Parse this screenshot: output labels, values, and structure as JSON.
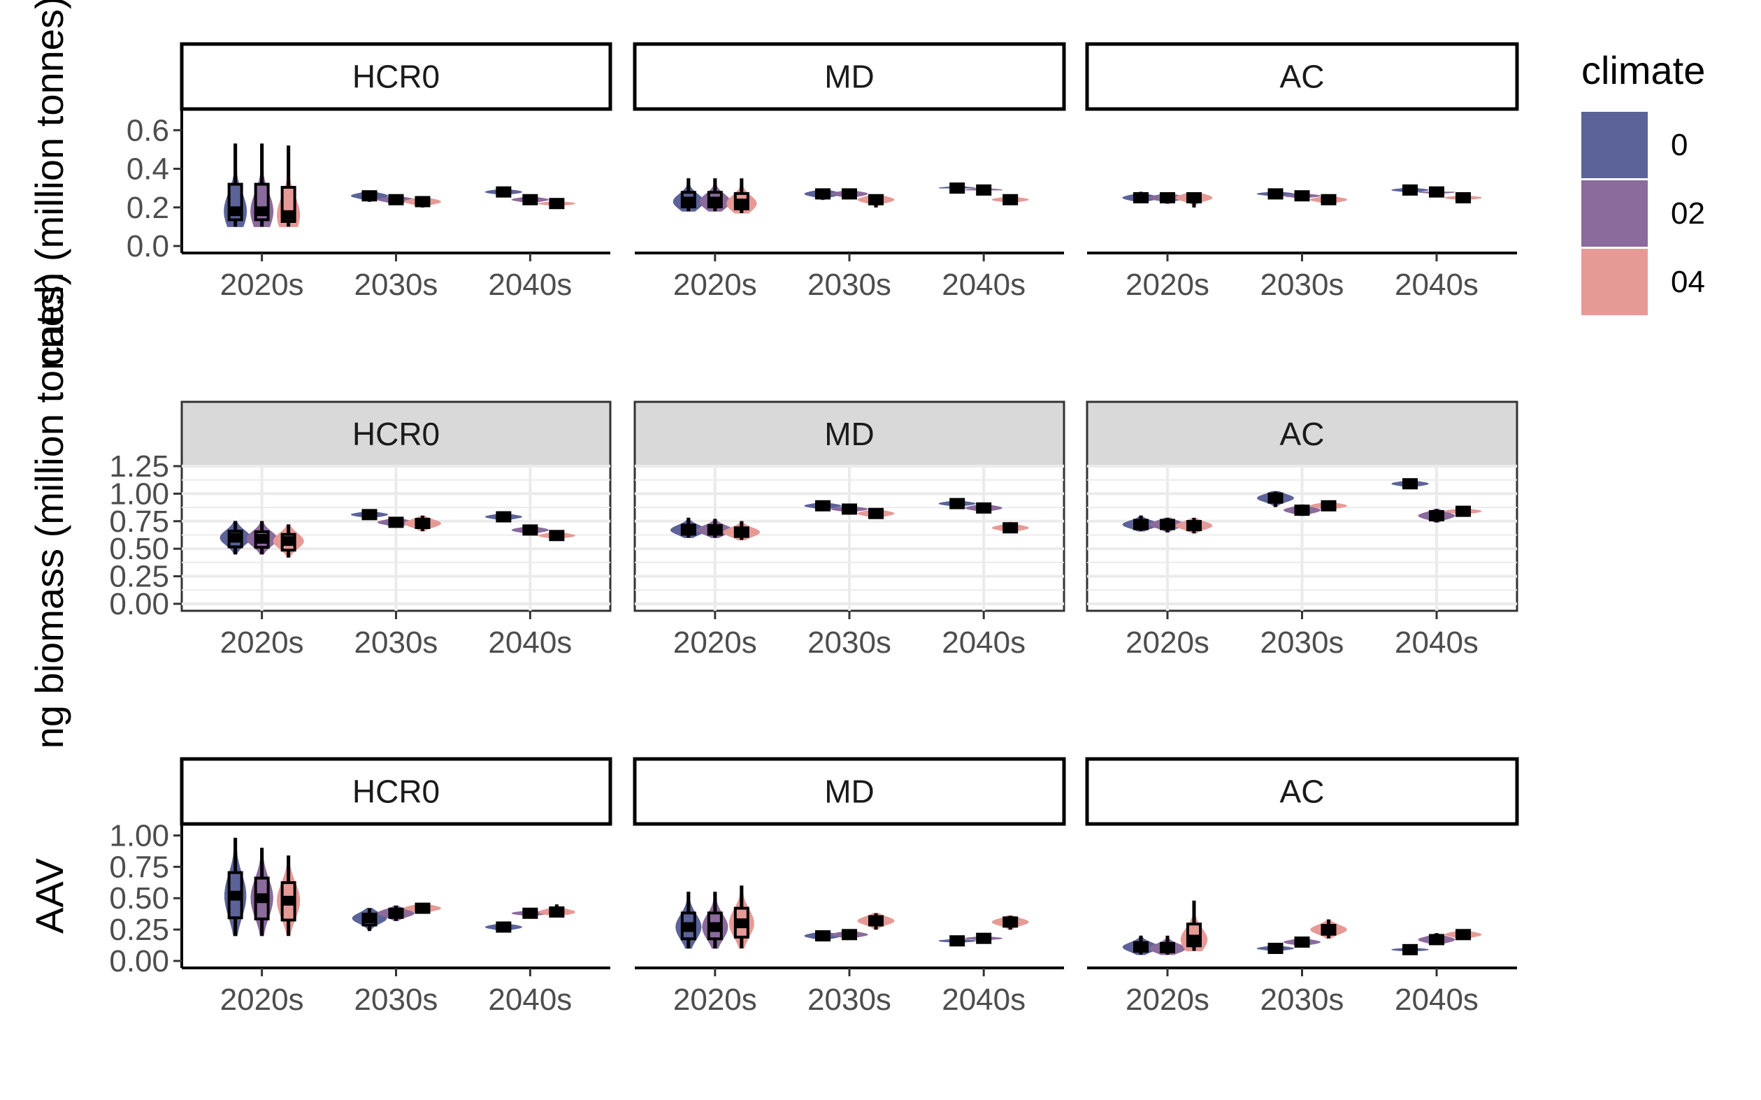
{
  "colors": {
    "c0": "#5b6399",
    "c02": "#8b6a9c",
    "c04": "#e69a96",
    "grid": "#ebebeb",
    "strip_bg": "#d9d9d9"
  },
  "legend": {
    "title": "climate",
    "items": [
      {
        "label": "0",
        "color": "#5b6399"
      },
      {
        "label": "02",
        "color": "#8b6a9c"
      },
      {
        "label": "04",
        "color": "#e69a96"
      }
    ]
  },
  "chart_data": [
    {
      "type": "violin-box",
      "ylabel": "catch (million tonnes)",
      "ylabel_visible": "catch (million tonnes)",
      "ylim": [
        0,
        0.65
      ],
      "yticks": [
        0.0,
        0.2,
        0.4,
        0.6
      ],
      "ytick_labels": [
        "0.0",
        "0.2",
        "0.4",
        "0.6"
      ],
      "grid": false,
      "facets": [
        "HCR0",
        "MD",
        "AC"
      ],
      "categories": [
        "2020s",
        "2030s",
        "2040s"
      ],
      "series": [
        {
          "name": "0",
          "values": {
            "HCR0": [
              [
                0.1,
                0.18,
                0.53
              ],
              [
                0.23,
                0.26,
                0.28
              ],
              [
                0.27,
                0.28,
                0.3
              ]
            ],
            "MD": [
              [
                0.18,
                0.23,
                0.35
              ],
              [
                0.24,
                0.27,
                0.29
              ],
              [
                0.3,
                0.3,
                0.31
              ]
            ],
            "AC": [
              [
                0.23,
                0.25,
                0.28
              ],
              [
                0.26,
                0.27,
                0.28
              ],
              [
                0.28,
                0.29,
                0.3
              ]
            ]
          }
        },
        {
          "name": "02",
          "values": {
            "HCR0": [
              [
                0.1,
                0.18,
                0.53
              ],
              [
                0.22,
                0.24,
                0.26
              ],
              [
                0.23,
                0.24,
                0.26
              ]
            ],
            "MD": [
              [
                0.18,
                0.23,
                0.35
              ],
              [
                0.25,
                0.27,
                0.29
              ],
              [
                0.29,
                0.29,
                0.3
              ]
            ],
            "AC": [
              [
                0.22,
                0.25,
                0.27
              ],
              [
                0.25,
                0.26,
                0.27
              ],
              [
                0.27,
                0.28,
                0.28
              ]
            ]
          }
        },
        {
          "name": "04",
          "values": {
            "HCR0": [
              [
                0.1,
                0.16,
                0.52
              ],
              [
                0.2,
                0.23,
                0.25
              ],
              [
                0.21,
                0.22,
                0.23
              ]
            ],
            "MD": [
              [
                0.17,
                0.22,
                0.35
              ],
              [
                0.2,
                0.24,
                0.26
              ],
              [
                0.23,
                0.24,
                0.26
              ]
            ],
            "AC": [
              [
                0.2,
                0.25,
                0.27
              ],
              [
                0.22,
                0.24,
                0.26
              ],
              [
                0.24,
                0.25,
                0.26
              ]
            ]
          }
        }
      ]
    },
    {
      "type": "violin-box",
      "ylabel": "spawning biomass (million tonnes)",
      "ylabel_visible": "ng biomass (million tonnes)",
      "ylim": [
        0,
        1.25
      ],
      "yticks": [
        0.0,
        0.25,
        0.5,
        0.75,
        1.0,
        1.25
      ],
      "ytick_labels": [
        "0.00",
        "0.25",
        "0.50",
        "0.75",
        "1.00",
        "1.25"
      ],
      "grid": true,
      "facets": [
        "HCR0",
        "MD",
        "AC"
      ],
      "categories": [
        "2020s",
        "2030s",
        "2040s"
      ],
      "series": [
        {
          "name": "0",
          "values": {
            "HCR0": [
              [
                0.45,
                0.6,
                0.75
              ],
              [
                0.78,
                0.81,
                0.84
              ],
              [
                0.76,
                0.79,
                0.82
              ]
            ],
            "MD": [
              [
                0.6,
                0.67,
                0.78
              ],
              [
                0.86,
                0.89,
                0.92
              ],
              [
                0.89,
                0.91,
                0.94
              ]
            ],
            "AC": [
              [
                0.66,
                0.72,
                0.8
              ],
              [
                0.88,
                0.96,
                1.02
              ],
              [
                1.06,
                1.09,
                1.12
              ]
            ]
          }
        },
        {
          "name": "02",
          "values": {
            "HCR0": [
              [
                0.45,
                0.59,
                0.75
              ],
              [
                0.7,
                0.74,
                0.78
              ],
              [
                0.63,
                0.67,
                0.7
              ]
            ],
            "MD": [
              [
                0.6,
                0.67,
                0.77
              ],
              [
                0.84,
                0.86,
                0.89
              ],
              [
                0.83,
                0.87,
                0.9
              ]
            ],
            "AC": [
              [
                0.65,
                0.72,
                0.78
              ],
              [
                0.8,
                0.85,
                0.9
              ],
              [
                0.74,
                0.8,
                0.86
              ]
            ]
          }
        },
        {
          "name": "04",
          "values": {
            "HCR0": [
              [
                0.42,
                0.57,
                0.72
              ],
              [
                0.66,
                0.73,
                0.8
              ],
              [
                0.6,
                0.62,
                0.66
              ]
            ],
            "MD": [
              [
                0.58,
                0.65,
                0.75
              ],
              [
                0.78,
                0.82,
                0.86
              ],
              [
                0.66,
                0.69,
                0.74
              ]
            ],
            "AC": [
              [
                0.64,
                0.71,
                0.78
              ],
              [
                0.86,
                0.89,
                0.93
              ],
              [
                0.82,
                0.84,
                0.87
              ]
            ]
          }
        }
      ]
    },
    {
      "type": "violin-box",
      "ylabel": "AAV",
      "ylabel_visible": "AAV",
      "ylim": [
        0,
        1.0
      ],
      "yticks": [
        0.0,
        0.25,
        0.5,
        0.75,
        1.0
      ],
      "ytick_labels": [
        "0.00",
        "0.25",
        "0.50",
        "0.75",
        "1.00"
      ],
      "grid": false,
      "facets": [
        "HCR0",
        "MD",
        "AC"
      ],
      "categories": [
        "2020s",
        "2030s",
        "2040s"
      ],
      "series": [
        {
          "name": "0",
          "values": {
            "HCR0": [
              [
                0.2,
                0.52,
                0.98
              ],
              [
                0.24,
                0.34,
                0.42
              ],
              [
                0.24,
                0.27,
                0.3
              ]
            ],
            "MD": [
              [
                0.1,
                0.27,
                0.55
              ],
              [
                0.17,
                0.2,
                0.24
              ],
              [
                0.15,
                0.16,
                0.17
              ]
            ],
            "AC": [
              [
                0.05,
                0.11,
                0.2
              ],
              [
                0.08,
                0.1,
                0.12
              ],
              [
                0.08,
                0.09,
                0.1
              ]
            ]
          }
        },
        {
          "name": "02",
          "values": {
            "HCR0": [
              [
                0.2,
                0.5,
                0.9
              ],
              [
                0.32,
                0.38,
                0.44
              ],
              [
                0.36,
                0.38,
                0.4
              ]
            ],
            "MD": [
              [
                0.1,
                0.27,
                0.55
              ],
              [
                0.18,
                0.21,
                0.24
              ],
              [
                0.17,
                0.18,
                0.19
              ]
            ],
            "AC": [
              [
                0.05,
                0.1,
                0.2
              ],
              [
                0.12,
                0.15,
                0.18
              ],
              [
                0.13,
                0.17,
                0.22
              ]
            ]
          }
        },
        {
          "name": "04",
          "values": {
            "HCR0": [
              [
                0.2,
                0.48,
                0.84
              ],
              [
                0.38,
                0.42,
                0.46
              ],
              [
                0.37,
                0.39,
                0.45
              ]
            ],
            "MD": [
              [
                0.1,
                0.3,
                0.6
              ],
              [
                0.25,
                0.32,
                0.38
              ],
              [
                0.25,
                0.31,
                0.36
              ]
            ],
            "AC": [
              [
                0.08,
                0.17,
                0.48
              ],
              [
                0.18,
                0.25,
                0.33
              ],
              [
                0.18,
                0.21,
                0.25
              ]
            ]
          }
        }
      ]
    }
  ]
}
